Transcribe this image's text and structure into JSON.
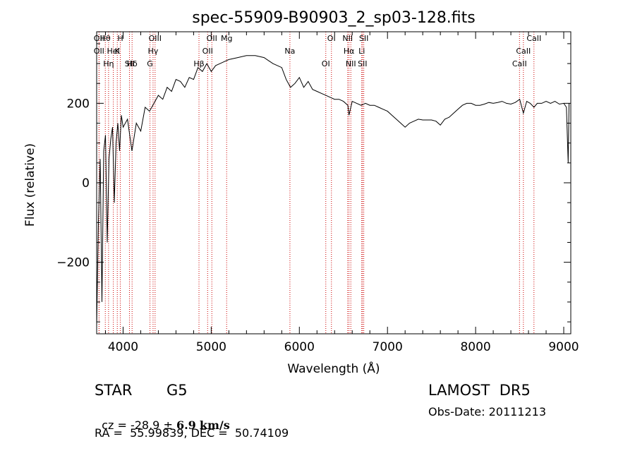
{
  "colors": {
    "line_marker": "#cc0000",
    "spectrum": "#000000"
  },
  "chart_data": {
    "type": "line",
    "title": "spec-55909-B90903_2_sp03-128.fits",
    "xlabel": "Wavelength (Å)",
    "ylabel": "Flux (relative)",
    "xlim": [
      3700,
      9080
    ],
    "ylim": [
      -380,
      380
    ],
    "xticks": [
      4000,
      5000,
      6000,
      7000,
      8000,
      9000
    ],
    "yticks": [
      -200,
      0,
      200
    ],
    "grid": false,
    "series": [
      {
        "x": [
          3700,
          3720,
          3740,
          3760,
          3780,
          3800,
          3820,
          3840,
          3860,
          3880,
          3900,
          3920,
          3940,
          3960,
          3980,
          4000,
          4050,
          4100,
          4150,
          4200,
          4250,
          4300,
          4350,
          4400,
          4450,
          4500,
          4550,
          4600,
          4650,
          4700,
          4750,
          4800,
          4850,
          4900,
          4950,
          5000,
          5050,
          5100,
          5150,
          5200,
          5300,
          5400,
          5500,
          5600,
          5700,
          5800,
          5850,
          5900,
          5950,
          6000,
          6050,
          6100,
          6150,
          6200,
          6250,
          6300,
          6350,
          6400,
          6450,
          6500,
          6550,
          6563,
          6600,
          6650,
          6700,
          6750,
          6800,
          6850,
          6900,
          6950,
          7000,
          7050,
          7100,
          7150,
          7200,
          7250,
          7300,
          7350,
          7400,
          7450,
          7500,
          7550,
          7600,
          7650,
          7700,
          7750,
          7800,
          7850,
          7900,
          7950,
          8000,
          8050,
          8100,
          8150,
          8200,
          8250,
          8300,
          8350,
          8400,
          8450,
          8500,
          8542,
          8580,
          8620,
          8662,
          8700,
          8750,
          8800,
          8850,
          8900,
          8950,
          9000,
          9030,
          9050,
          9060
        ],
        "y": [
          -360,
          -100,
          60,
          -300,
          80,
          120,
          -150,
          60,
          110,
          140,
          -50,
          100,
          150,
          80,
          170,
          140,
          160,
          80,
          150,
          130,
          190,
          180,
          200,
          220,
          210,
          240,
          230,
          260,
          255,
          240,
          265,
          260,
          290,
          280,
          300,
          280,
          295,
          300,
          305,
          310,
          315,
          320,
          320,
          315,
          300,
          290,
          260,
          240,
          250,
          265,
          240,
          255,
          235,
          230,
          225,
          220,
          215,
          210,
          210,
          205,
          195,
          170,
          205,
          200,
          195,
          200,
          195,
          195,
          190,
          185,
          180,
          170,
          160,
          150,
          140,
          150,
          155,
          160,
          158,
          158,
          158,
          155,
          145,
          160,
          165,
          175,
          185,
          195,
          200,
          200,
          195,
          195,
          198,
          202,
          200,
          202,
          205,
          200,
          198,
          202,
          210,
          175,
          205,
          200,
          190,
          200,
          200,
          205,
          200,
          205,
          198,
          200,
          190,
          50,
          200
        ]
      }
    ],
    "lines": [
      {
        "label": "Hθ",
        "wave": 3798
      },
      {
        "label": "K",
        "wave": 3934
      },
      {
        "label": "Hδ",
        "wave": 4102
      },
      {
        "label": "OII",
        "wave": 3727
      },
      {
        "label": "HeI",
        "wave": 3889
      },
      {
        "label": "SII",
        "wave": 4072
      },
      {
        "label": "OIII",
        "wave": 4363
      },
      {
        "label": "OII",
        "wave": 3727
      },
      {
        "label": "Hη",
        "wave": 3835
      },
      {
        "label": "H",
        "wave": 3968
      },
      {
        "label": "Hγ",
        "wave": 4340
      },
      {
        "label": "G",
        "wave": 4305
      },
      {
        "label": "OII",
        "wave": 5007
      },
      {
        "label": "OII",
        "wave": 4959
      },
      {
        "label": "Hβ",
        "wave": 4861
      },
      {
        "label": "Mg",
        "wave": 5175
      },
      {
        "label": "Na",
        "wave": 5893
      },
      {
        "label": "OI",
        "wave": 6300
      },
      {
        "label": "OI",
        "wave": 6364
      },
      {
        "label": "Hα",
        "wave": 6563
      },
      {
        "label": "SII",
        "wave": 6716
      },
      {
        "label": "NII",
        "wave": 6548
      },
      {
        "label": "Li",
        "wave": 6708
      },
      {
        "label": "NII",
        "wave": 6584
      },
      {
        "label": "SII",
        "wave": 6731
      },
      {
        "label": "CaII",
        "wave": 8542
      },
      {
        "label": "CaII",
        "wave": 8498
      },
      {
        "label": "CaII",
        "wave": 8662
      }
    ]
  },
  "info": {
    "object_class": "STAR",
    "subclass": "G5",
    "survey": "LAMOST  DR5",
    "cz_label": "cz = ",
    "cz_value": "-28.9",
    "pm": "±",
    "cz_error": "6.9",
    "cz_unit": "km/s",
    "obs_date": "Obs-Date: 20111213",
    "coords": "RA =  55.99839, DEC =  50.74109"
  }
}
